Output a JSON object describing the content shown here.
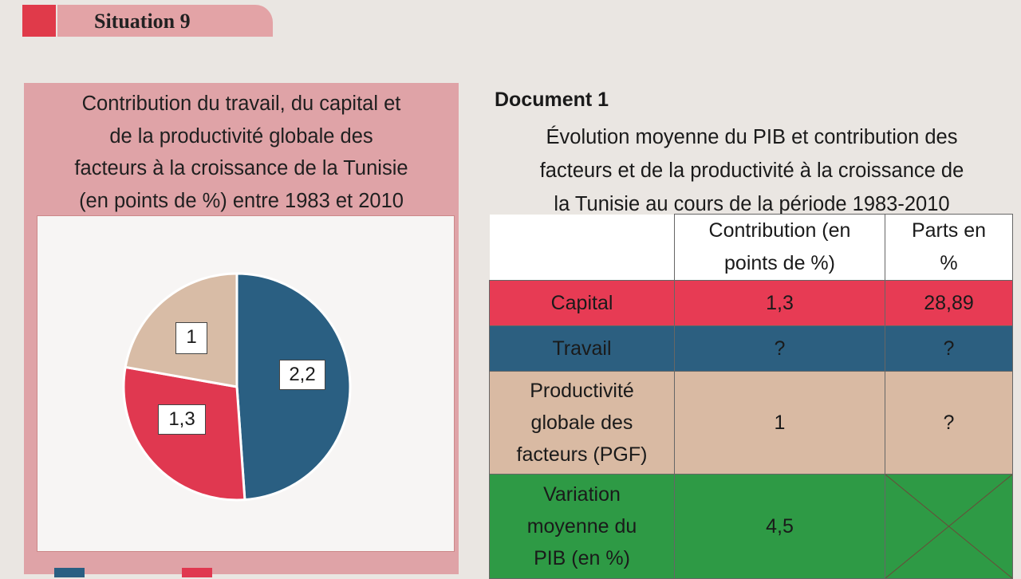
{
  "header": {
    "title": "Situation 9"
  },
  "left_panel": {
    "title_lines": [
      "Contribution du travail, du capital et",
      "de la productivité globale des",
      "facteurs à la croissance de la Tunisie",
      "(en points de %) entre 1983 et 2010"
    ]
  },
  "chart_data": {
    "type": "pie",
    "slices": [
      {
        "label": "2,2",
        "value": 2.2,
        "color": "#2a5f82"
      },
      {
        "label": "1,3",
        "value": 1.3,
        "color": "#e03850"
      },
      {
        "label": "1",
        "value": 1.0,
        "color": "#d8bca6"
      }
    ],
    "legend_colors": [
      "#2a5f82",
      "#e03850"
    ]
  },
  "document": {
    "title": "Document 1",
    "subtitle_lines": [
      "Évolution moyenne du PIB et contribution des",
      "facteurs et de la productivité à la croissance de",
      "la Tunisie au cours de la période 1983-2010"
    ]
  },
  "table": {
    "headers": [
      [
        "Contribution (en",
        "points de %)"
      ],
      [
        "Parts en",
        "%"
      ]
    ],
    "rows": [
      {
        "label": [
          "Capital"
        ],
        "contribution": "1,3",
        "parts": "28,89"
      },
      {
        "label": [
          "Travail"
        ],
        "contribution": "?",
        "parts": "?"
      },
      {
        "label": [
          "Productivité",
          "globale des",
          "facteurs (PGF)"
        ],
        "contribution": "1",
        "parts": "?"
      },
      {
        "label": [
          "Variation",
          "moyenne du",
          "PIB (en %)"
        ],
        "contribution": "4,5",
        "parts": ""
      }
    ]
  }
}
